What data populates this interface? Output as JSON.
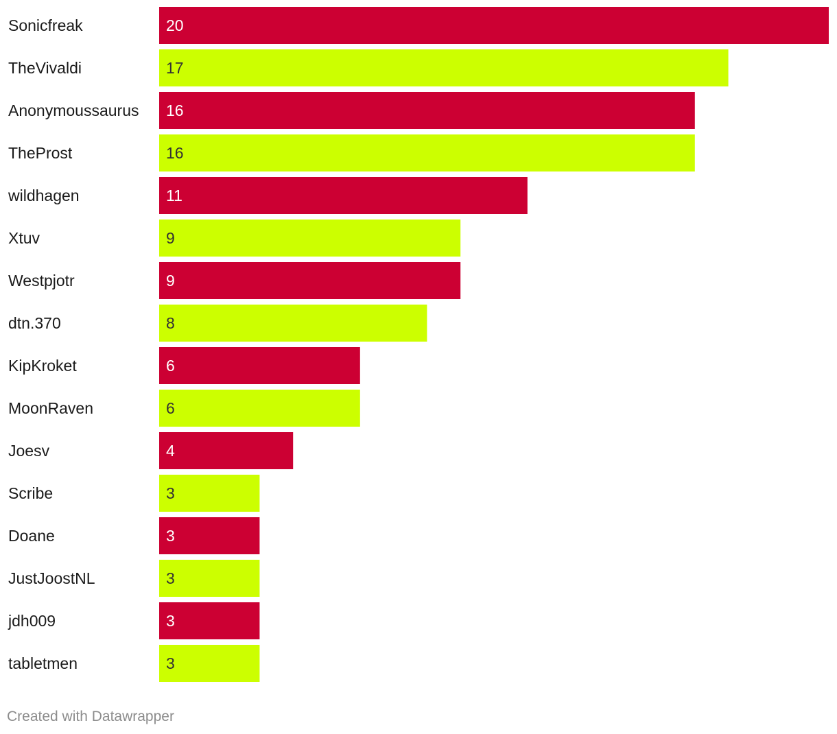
{
  "chart_data": {
    "type": "bar",
    "orientation": "horizontal",
    "title": "",
    "xlabel": "",
    "ylabel": "",
    "xlim": [
      0,
      20
    ],
    "grid": false,
    "categories": [
      "Sonicfreak",
      "TheVivaldi",
      "Anonymoussaurus",
      "TheProst",
      "wildhagen",
      "Xtuv",
      "Westpjotr",
      "dtn.370",
      "KipKroket",
      "MoonRaven",
      "Joesv",
      "Scribe",
      "Doane",
      "JustJoostNL",
      "jdh009",
      "tabletmen"
    ],
    "values": [
      20,
      17,
      16,
      16,
      11,
      9,
      9,
      8,
      6,
      6,
      4,
      3,
      3,
      3,
      3,
      3
    ],
    "colors": [
      "#cc0033",
      "#ccff00"
    ],
    "value_text_colors": [
      "#ffffff",
      "#333333"
    ]
  },
  "footer": {
    "credit": "Created with Datawrapper"
  }
}
